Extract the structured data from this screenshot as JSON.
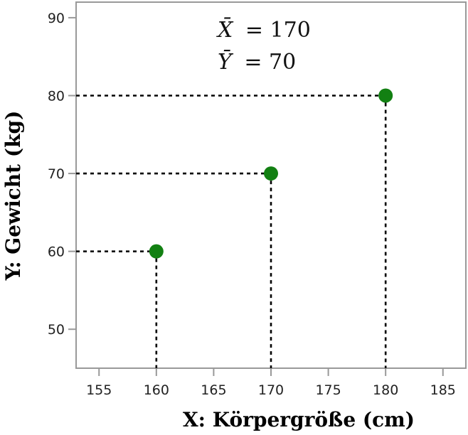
{
  "chart_data": {
    "type": "scatter",
    "xlabel": "X: Körpergröße (cm)",
    "ylabel": "Y: Gewicht (kg)",
    "xlim": [
      153,
      187
    ],
    "ylim": [
      45,
      92
    ],
    "xticks": [
      155,
      160,
      165,
      170,
      175,
      180,
      185
    ],
    "yticks": [
      50,
      60,
      70,
      80,
      90
    ],
    "points": [
      {
        "x": 160,
        "y": 60
      },
      {
        "x": 170,
        "y": 70
      },
      {
        "x": 180,
        "y": 80
      }
    ],
    "point_color": "#128012",
    "guide_lines": "dotted",
    "grid": false,
    "annotations": [
      {
        "symbol": "X̄",
        "equals": "= 170"
      },
      {
        "symbol": "Ȳ",
        "equals": "= 70"
      }
    ]
  }
}
